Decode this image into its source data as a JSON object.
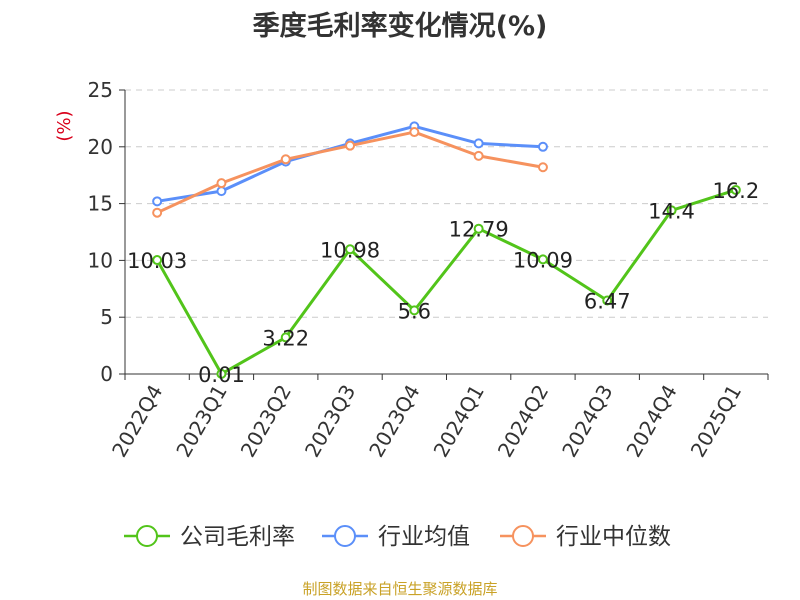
{
  "chart_data": {
    "type": "line",
    "title": "季度毛利率变化情况(%)",
    "ylabel": "(%)",
    "ylim": [
      0,
      25
    ],
    "yticks": [
      0,
      5,
      10,
      15,
      20,
      25
    ],
    "categories": [
      "2022Q4",
      "2023Q1",
      "2023Q2",
      "2023Q3",
      "2023Q4",
      "2024Q1",
      "2024Q2",
      "2024Q3",
      "2024Q4",
      "2025Q1"
    ],
    "grid": true,
    "legend_position": "bottom",
    "series": [
      {
        "name": "公司毛利率",
        "color": "#52c41a",
        "values": [
          10.03,
          0.01,
          3.22,
          10.98,
          5.6,
          12.79,
          10.09,
          6.47,
          14.4,
          16.2
        ],
        "labels": [
          "10.03",
          "0.01",
          "3.22",
          "10.98",
          "5.6",
          "12.79",
          "10.09",
          "6.47",
          "14.4",
          "16.2"
        ]
      },
      {
        "name": "行业均值",
        "color": "#5b8ff9",
        "values": [
          15.2,
          16.1,
          18.7,
          20.3,
          21.8,
          20.3,
          20.0,
          null,
          null,
          null
        ]
      },
      {
        "name": "行业中位数",
        "color": "#f6925e",
        "values": [
          14.2,
          16.8,
          18.9,
          20.1,
          21.3,
          19.2,
          18.2,
          null,
          null,
          null
        ]
      }
    ]
  },
  "source": "制图数据来自恒生聚源数据库"
}
